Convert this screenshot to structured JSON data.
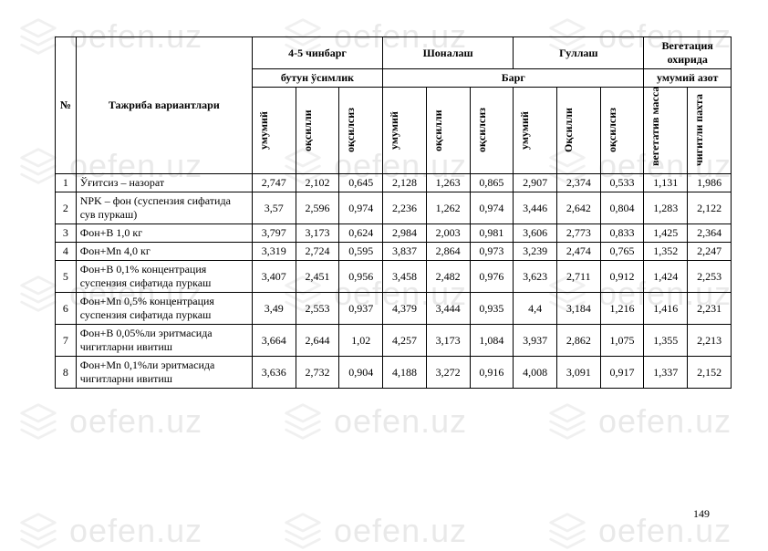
{
  "watermark": {
    "text": "oefen.uz"
  },
  "pageNumber": "149",
  "table": {
    "topHeaders": {
      "h1": "4-5 чинбарг",
      "h2": "Шоналаш",
      "h3": "Гуллаш",
      "h4": "Вегетация охирида",
      "sub1": "бутун ўсимлик",
      "sub2": "Барг",
      "sub3": "умумий азот"
    },
    "colHeads": {
      "num": "№",
      "desc": "Тажриба вариантлари",
      "c1": "умумий",
      "c2": "оқсилли",
      "c3": "оқсилсиз",
      "c4": "умумий",
      "c5": "оқсилли",
      "c6": "оқсилсиз",
      "c7": "умумий",
      "c8": "Оқсилли",
      "c9": "оқсилсиз",
      "c10": "вегетатив масса",
      "c11": "чигитли пахта"
    },
    "rows": [
      {
        "n": "1",
        "d": "Ўғитсиз – назорат",
        "v": [
          "2,747",
          "2,102",
          "0,645",
          "2,128",
          "1,263",
          "0,865",
          "2,907",
          "2,374",
          "0,533",
          "1,131",
          "1,986"
        ]
      },
      {
        "n": "2",
        "d": "NPK – фон (суспензия сифатида сув пуркаш)",
        "v": [
          "3,57",
          "2,596",
          "0,974",
          "2,236",
          "1,262",
          "0,974",
          "3,446",
          "2,642",
          "0,804",
          "1,283",
          "2,122"
        ]
      },
      {
        "n": "3",
        "d": "Фон+B 1,0 кг",
        "v": [
          "3,797",
          "3,173",
          "0,624",
          "2,984",
          "2,003",
          "0,981",
          "3,606",
          "2,773",
          "0,833",
          "1,425",
          "2,364"
        ]
      },
      {
        "n": "4",
        "d": "Фон+Mn 4,0 кг",
        "v": [
          "3,319",
          "2,724",
          "0,595",
          "3,837",
          "2,864",
          "0,973",
          "3,239",
          "2,474",
          "0,765",
          "1,352",
          "2,247"
        ]
      },
      {
        "n": "5",
        "d": "Фон+B 0,1% концентрация суспензия сифатида пуркаш",
        "v": [
          "3,407",
          "2,451",
          "0,956",
          "3,458",
          "2,482",
          "0,976",
          "3,623",
          "2,711",
          "0,912",
          "1,424",
          "2,253"
        ]
      },
      {
        "n": "6",
        "d": "Фон+Mn 0,5% концентрация суспензия сифатида пуркаш",
        "v": [
          "3,49",
          "2,553",
          "0,937",
          "4,379",
          "3,444",
          "0,935",
          "4,4",
          "3,184",
          "1,216",
          "1,416",
          "2,231"
        ]
      },
      {
        "n": "7",
        "d": "Фон+B 0,05%ли эритмасида чигитларни ивитиш",
        "v": [
          "3,664",
          "2,644",
          "1,02",
          "4,257",
          "3,173",
          "1,084",
          "3,937",
          "2,862",
          "1,075",
          "1,355",
          "2,213"
        ]
      },
      {
        "n": "8",
        "d": "Фон+Mn 0,1%ли эритмасида чигитларни ивитиш",
        "v": [
          "3,636",
          "2,732",
          "0,904",
          "4,188",
          "3,272",
          "0,916",
          "4,008",
          "3,091",
          "0,917",
          "1,337",
          "2,152"
        ]
      }
    ]
  }
}
